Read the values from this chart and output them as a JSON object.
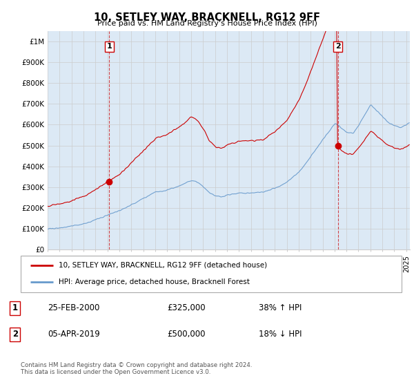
{
  "title": "10, SETLEY WAY, BRACKNELL, RG12 9FF",
  "subtitle": "Price paid vs. HM Land Registry's House Price Index (HPI)",
  "ylabel_ticks": [
    "£0",
    "£100K",
    "£200K",
    "£300K",
    "£400K",
    "£500K",
    "£600K",
    "£700K",
    "£800K",
    "£900K",
    "£1M"
  ],
  "ytick_values": [
    0,
    100000,
    200000,
    300000,
    400000,
    500000,
    600000,
    700000,
    800000,
    900000,
    1000000
  ],
  "ylim": [
    0,
    1050000
  ],
  "xlim_start": 1995.0,
  "xlim_end": 2025.3,
  "transaction1_year": 2000.15,
  "transaction1_price": 325000,
  "transaction2_year": 2019.27,
  "transaction2_price": 500000,
  "legend_line1": "10, SETLEY WAY, BRACKNELL, RG12 9FF (detached house)",
  "legend_line2": "HPI: Average price, detached house, Bracknell Forest",
  "table_row1": [
    "1",
    "25-FEB-2000",
    "£325,000",
    "38% ↑ HPI"
  ],
  "table_row2": [
    "2",
    "05-APR-2019",
    "£500,000",
    "18% ↓ HPI"
  ],
  "footer": "Contains HM Land Registry data © Crown copyright and database right 2024.\nThis data is licensed under the Open Government Licence v3.0.",
  "color_red": "#cc0000",
  "color_blue": "#6699cc",
  "color_blue_fill": "#dce9f5",
  "background_color": "#ffffff",
  "grid_color": "#cccccc",
  "chart_bg": "#dce9f5"
}
